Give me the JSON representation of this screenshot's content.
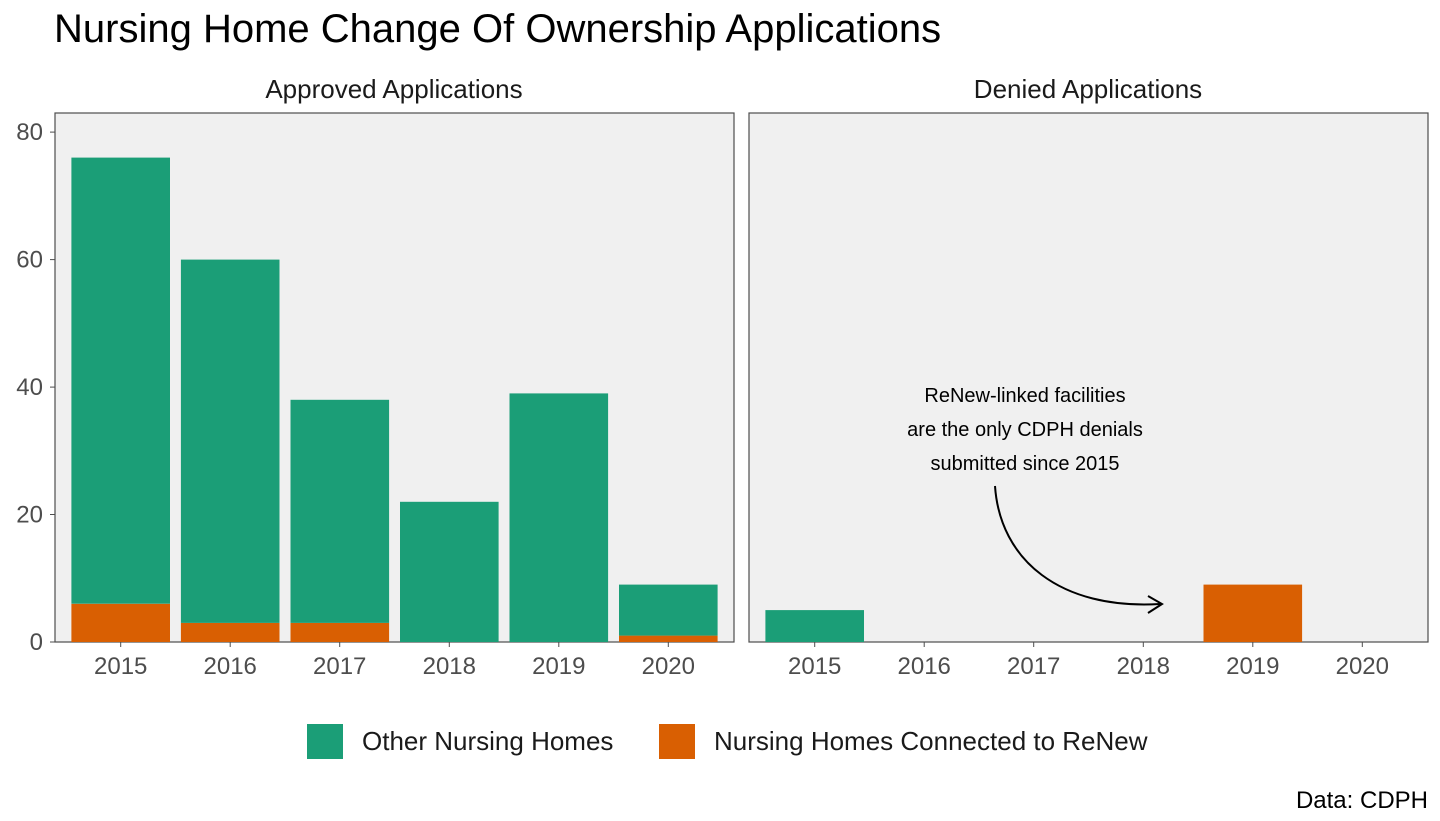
{
  "chart_data": {
    "type": "bar",
    "stacked": true,
    "title": "Nursing Home Change Of Ownership Applications",
    "caption": "Data: CDPH",
    "categories": [
      "2015",
      "2016",
      "2017",
      "2018",
      "2019",
      "2020"
    ],
    "ylim": [
      0,
      83
    ],
    "yticks": [
      0,
      20,
      40,
      60,
      80
    ],
    "legend_position": "bottom",
    "grid": false,
    "colors": {
      "other": "#1b9e77",
      "renew": "#d95f02",
      "panel": "#f0f0f0",
      "panel_border": "#4d4d4d"
    },
    "legend": [
      {
        "key": "other",
        "label": "Other Nursing Homes",
        "color": "#1b9e77"
      },
      {
        "key": "renew",
        "label": "Nursing Homes Connected to ReNew",
        "color": "#d95f02"
      }
    ],
    "facets": [
      {
        "label": "Approved Applications",
        "series": [
          {
            "key": "renew",
            "values": [
              6,
              3,
              3,
              0,
              0,
              1
            ]
          },
          {
            "key": "other",
            "values": [
              70,
              57,
              35,
              22,
              39,
              8
            ]
          }
        ]
      },
      {
        "label": "Denied Applications",
        "series": [
          {
            "key": "renew",
            "values": [
              0,
              0,
              0,
              0,
              9,
              0
            ]
          },
          {
            "key": "other",
            "values": [
              5,
              0,
              0,
              0,
              0,
              0
            ]
          }
        ],
        "annotation": {
          "lines": [
            "ReNew-linked facilities",
            "are the only CDPH denials",
            "submitted since 2015"
          ]
        }
      }
    ]
  }
}
